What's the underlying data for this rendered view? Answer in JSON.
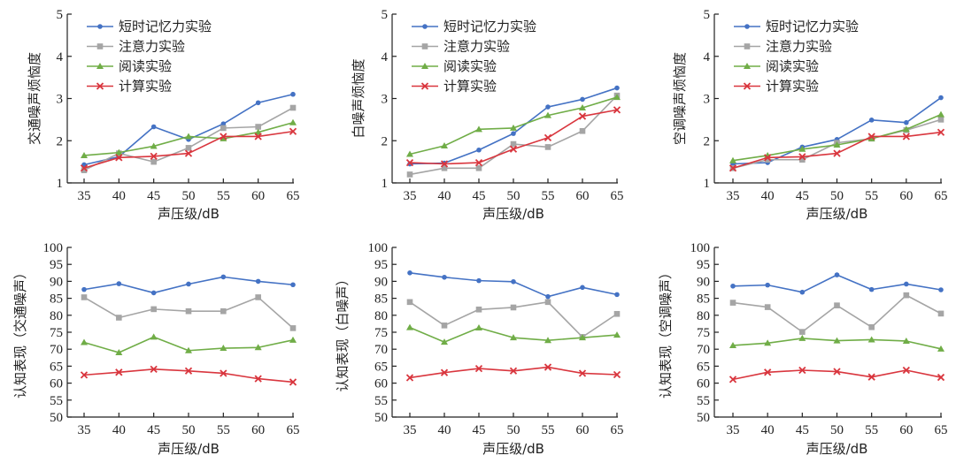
{
  "chart_data": [
    {
      "type": "line",
      "id": "traffic-annoyance",
      "xlabel": "声压级/dB",
      "ylabel": "交通噪声烦恼度",
      "x": [
        35,
        40,
        45,
        50,
        55,
        60,
        65
      ],
      "ylim": [
        1,
        5
      ],
      "yticks": [
        1,
        2,
        3,
        4,
        5
      ],
      "legend": "top-left",
      "series": [
        {
          "name": "短时记忆力实验",
          "marker": "circle",
          "color": "#4472C4",
          "values": [
            1.43,
            1.62,
            2.33,
            2.03,
            2.4,
            2.9,
            3.1
          ]
        },
        {
          "name": "注意力实验",
          "marker": "square",
          "color": "#A5A5A5",
          "values": [
            1.3,
            1.7,
            1.5,
            1.83,
            2.3,
            2.33,
            2.78
          ]
        },
        {
          "name": "阅读实验",
          "marker": "triangle",
          "color": "#70AD47",
          "values": [
            1.65,
            1.72,
            1.87,
            2.1,
            2.05,
            2.2,
            2.43
          ]
        },
        {
          "name": "计算实验",
          "marker": "x",
          "color": "#D9363E",
          "values": [
            1.35,
            1.6,
            1.63,
            1.7,
            2.1,
            2.1,
            2.22
          ]
        }
      ]
    },
    {
      "type": "line",
      "id": "white-annoyance",
      "xlabel": "声压级/dB",
      "ylabel": "白噪声烦恼度",
      "x": [
        35,
        40,
        45,
        50,
        55,
        60,
        65
      ],
      "ylim": [
        1,
        5
      ],
      "yticks": [
        1,
        2,
        3,
        4,
        5
      ],
      "legend": "top-left",
      "series": [
        {
          "name": "短时记忆力实验",
          "marker": "circle",
          "color": "#4472C4",
          "values": [
            1.45,
            1.47,
            1.78,
            2.17,
            2.8,
            2.98,
            3.25
          ]
        },
        {
          "name": "注意力实验",
          "marker": "square",
          "color": "#A5A5A5",
          "values": [
            1.2,
            1.35,
            1.35,
            1.92,
            1.85,
            2.23,
            3.07
          ]
        },
        {
          "name": "阅读实验",
          "marker": "triangle",
          "color": "#70AD47",
          "values": [
            1.68,
            1.88,
            2.27,
            2.3,
            2.6,
            2.78,
            3.03
          ]
        },
        {
          "name": "计算实验",
          "marker": "x",
          "color": "#D9363E",
          "values": [
            1.48,
            1.45,
            1.48,
            1.8,
            2.07,
            2.58,
            2.73
          ]
        }
      ]
    },
    {
      "type": "line",
      "id": "ac-annoyance",
      "xlabel": "声压级/dB",
      "ylabel": "空调噪声烦恼度",
      "x": [
        35,
        40,
        45,
        50,
        55,
        60,
        65
      ],
      "ylim": [
        1,
        5
      ],
      "yticks": [
        1,
        2,
        3,
        4,
        5
      ],
      "legend": "top-left",
      "series": [
        {
          "name": "短时记忆力实验",
          "marker": "circle",
          "color": "#4472C4",
          "values": [
            1.45,
            1.48,
            1.85,
            2.03,
            2.49,
            2.43,
            3.02
          ]
        },
        {
          "name": "注意力实验",
          "marker": "square",
          "color": "#A5A5A5",
          "values": [
            1.35,
            1.55,
            1.55,
            1.95,
            2.05,
            2.25,
            2.5
          ]
        },
        {
          "name": "阅读实验",
          "marker": "triangle",
          "color": "#70AD47",
          "values": [
            1.53,
            1.65,
            1.8,
            1.9,
            2.05,
            2.27,
            2.62
          ]
        },
        {
          "name": "计算实验",
          "marker": "x",
          "color": "#D9363E",
          "values": [
            1.35,
            1.6,
            1.62,
            1.7,
            2.1,
            2.1,
            2.2
          ]
        }
      ]
    },
    {
      "type": "line",
      "id": "traffic-performance",
      "xlabel": "声压级/dB",
      "ylabel": "认知表现（交通噪声）",
      "x": [
        35,
        40,
        45,
        50,
        55,
        60,
        65
      ],
      "ylim": [
        50,
        100
      ],
      "yticks": [
        50,
        55,
        60,
        65,
        70,
        75,
        80,
        85,
        90,
        95,
        100
      ],
      "series": [
        {
          "name": "短时记忆力实验",
          "marker": "circle",
          "color": "#4472C4",
          "values": [
            87.6,
            89.3,
            86.6,
            89.2,
            91.3,
            90.0,
            89.0
          ]
        },
        {
          "name": "注意力实验",
          "marker": "square",
          "color": "#A5A5A5",
          "values": [
            85.3,
            79.3,
            81.8,
            81.2,
            81.2,
            85.3,
            76.2
          ]
        },
        {
          "name": "阅读实验",
          "marker": "triangle",
          "color": "#70AD47",
          "values": [
            72.0,
            69.0,
            73.6,
            69.6,
            70.3,
            70.5,
            72.7
          ]
        },
        {
          "name": "计算实验",
          "marker": "x",
          "color": "#D9363E",
          "values": [
            62.4,
            63.2,
            64.1,
            63.6,
            62.9,
            61.3,
            60.3
          ]
        }
      ]
    },
    {
      "type": "line",
      "id": "white-performance",
      "xlabel": "声压级/dB",
      "ylabel": "认知表现（白噪声）",
      "x": [
        35,
        40,
        45,
        50,
        55,
        60,
        65
      ],
      "ylim": [
        50,
        100
      ],
      "yticks": [
        50,
        55,
        60,
        65,
        70,
        75,
        80,
        85,
        90,
        95,
        100
      ],
      "series": [
        {
          "name": "短时记忆力实验",
          "marker": "circle",
          "color": "#4472C4",
          "values": [
            92.5,
            91.2,
            90.2,
            89.9,
            85.5,
            88.2,
            86.1
          ]
        },
        {
          "name": "注意力实验",
          "marker": "square",
          "color": "#A5A5A5",
          "values": [
            83.9,
            77.0,
            81.7,
            82.3,
            83.9,
            73.6,
            80.4
          ]
        },
        {
          "name": "阅读实验",
          "marker": "triangle",
          "color": "#70AD47",
          "values": [
            76.4,
            72.1,
            76.3,
            73.4,
            72.6,
            73.4,
            74.2
          ]
        },
        {
          "name": "计算实验",
          "marker": "x",
          "color": "#D9363E",
          "values": [
            61.6,
            63.1,
            64.3,
            63.6,
            64.7,
            62.9,
            62.5
          ]
        }
      ]
    },
    {
      "type": "line",
      "id": "ac-performance",
      "xlabel": "声压级/dB",
      "ylabel": "认知表现（空调噪声）",
      "x": [
        35,
        40,
        45,
        50,
        55,
        60,
        65
      ],
      "ylim": [
        50,
        100
      ],
      "yticks": [
        50,
        55,
        60,
        65,
        70,
        75,
        80,
        85,
        90,
        95,
        100
      ],
      "series": [
        {
          "name": "短时记忆力实验",
          "marker": "circle",
          "color": "#4472C4",
          "values": [
            88.6,
            88.9,
            86.8,
            91.9,
            87.6,
            89.2,
            87.5
          ]
        },
        {
          "name": "注意力实验",
          "marker": "square",
          "color": "#A5A5A5",
          "values": [
            83.7,
            82.4,
            75.1,
            82.9,
            76.5,
            85.9,
            80.5
          ]
        },
        {
          "name": "阅读实验",
          "marker": "triangle",
          "color": "#70AD47",
          "values": [
            71.1,
            71.8,
            73.2,
            72.5,
            72.8,
            72.4,
            70.1
          ]
        },
        {
          "name": "计算实验",
          "marker": "x",
          "color": "#D9363E",
          "values": [
            61.1,
            63.2,
            63.8,
            63.4,
            61.8,
            63.8,
            61.7
          ]
        }
      ]
    }
  ]
}
